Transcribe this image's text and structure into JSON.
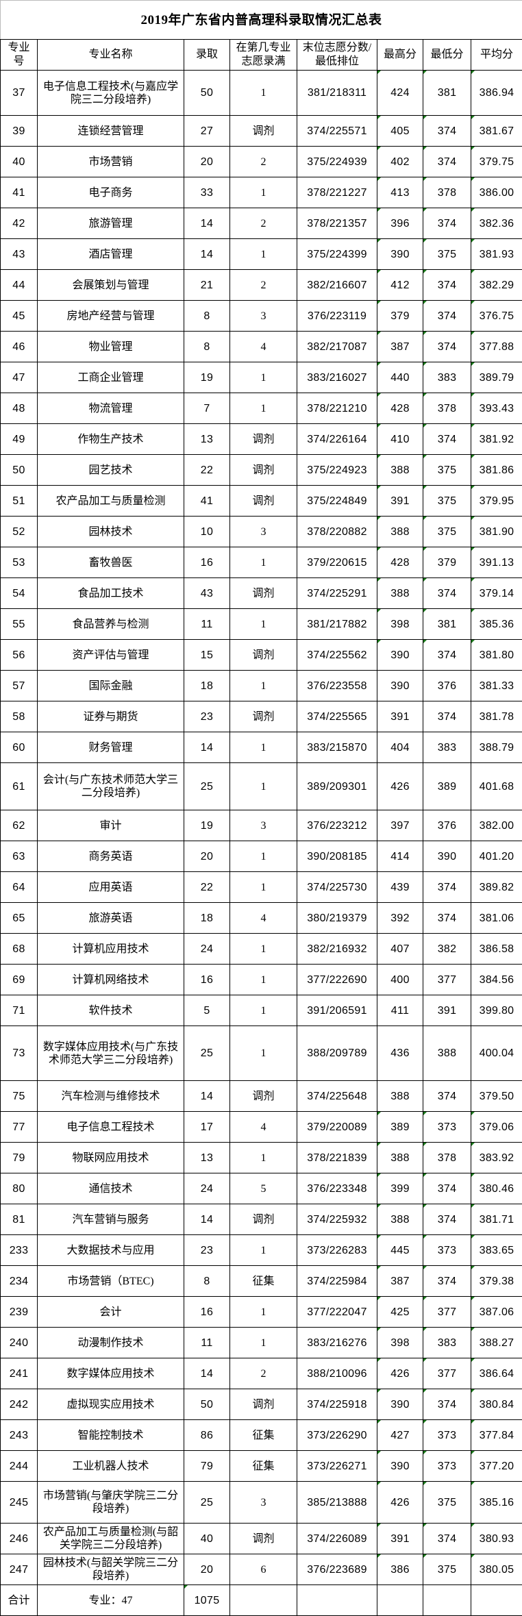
{
  "title": "2019年广东省内普高理科录取情况汇总表",
  "headers": [
    "专业号",
    "专业名称",
    "录取",
    "在第几专业志愿录满",
    "末位志愿分数/最低排位",
    "最高分",
    "最低分",
    "平均分"
  ],
  "rows": [
    {
      "code": "37",
      "name": "电子信息工程技术(与嘉应学院三二分段培养)",
      "admitted": "50",
      "round": "1",
      "last": "381/218311",
      "max": "424",
      "min": "381",
      "avg": "386.94"
    },
    {
      "code": "39",
      "name": "连锁经营管理",
      "admitted": "27",
      "round": "调剂",
      "last": "374/225571",
      "max": "405",
      "min": "374",
      "avg": "381.67"
    },
    {
      "code": "40",
      "name": "市场营销",
      "admitted": "20",
      "round": "2",
      "last": "375/224939",
      "max": "402",
      "min": "374",
      "avg": "379.75"
    },
    {
      "code": "41",
      "name": "电子商务",
      "admitted": "33",
      "round": "1",
      "last": "378/221227",
      "max": "413",
      "min": "378",
      "avg": "386.00"
    },
    {
      "code": "42",
      "name": "旅游管理",
      "admitted": "14",
      "round": "2",
      "last": "378/221357",
      "max": "396",
      "min": "374",
      "avg": "382.36"
    },
    {
      "code": "43",
      "name": "酒店管理",
      "admitted": "14",
      "round": "1",
      "last": "375/224399",
      "max": "390",
      "min": "375",
      "avg": "381.93"
    },
    {
      "code": "44",
      "name": "会展策划与管理",
      "admitted": "21",
      "round": "2",
      "last": "382/216607",
      "max": "412",
      "min": "374",
      "avg": "382.29"
    },
    {
      "code": "45",
      "name": "房地产经营与管理",
      "admitted": "8",
      "round": "3",
      "last": "376/223119",
      "max": "379",
      "min": "374",
      "avg": "376.75"
    },
    {
      "code": "46",
      "name": "物业管理",
      "admitted": "8",
      "round": "4",
      "last": "382/217087",
      "max": "387",
      "min": "374",
      "avg": "377.88"
    },
    {
      "code": "47",
      "name": "工商企业管理",
      "admitted": "19",
      "round": "1",
      "last": "383/216027",
      "max": "440",
      "min": "383",
      "avg": "389.79"
    },
    {
      "code": "48",
      "name": "物流管理",
      "admitted": "7",
      "round": "1",
      "last": "378/221210",
      "max": "428",
      "min": "378",
      "avg": "393.43"
    },
    {
      "code": "49",
      "name": "作物生产技术",
      "admitted": "13",
      "round": "调剂",
      "last": "374/226164",
      "max": "410",
      "min": "374",
      "avg": "381.92"
    },
    {
      "code": "50",
      "name": "园艺技术",
      "admitted": "22",
      "round": "调剂",
      "last": "375/224923",
      "max": "388",
      "min": "375",
      "avg": "381.86"
    },
    {
      "code": "51",
      "name": "农产品加工与质量检测",
      "admitted": "41",
      "round": "调剂",
      "last": "375/224849",
      "max": "391",
      "min": "375",
      "avg": "379.95"
    },
    {
      "code": "52",
      "name": "园林技术",
      "admitted": "10",
      "round": "3",
      "last": "378/220882",
      "max": "388",
      "min": "375",
      "avg": "381.90"
    },
    {
      "code": "53",
      "name": "畜牧兽医",
      "admitted": "16",
      "round": "1",
      "last": "379/220615",
      "max": "428",
      "min": "379",
      "avg": "391.13"
    },
    {
      "code": "54",
      "name": "食品加工技术",
      "admitted": "43",
      "round": "调剂",
      "last": "374/225291",
      "max": "388",
      "min": "374",
      "avg": "379.14"
    },
    {
      "code": "55",
      "name": "食品营养与检测",
      "admitted": "11",
      "round": "1",
      "last": "381/217882",
      "max": "398",
      "min": "381",
      "avg": "385.36"
    },
    {
      "code": "56",
      "name": "资产评估与管理",
      "admitted": "15",
      "round": "调剂",
      "last": "374/225562",
      "max": "390",
      "min": "374",
      "avg": "381.80"
    },
    {
      "code": "57",
      "name": "国际金融",
      "admitted": "18",
      "round": "1",
      "last": "376/223558",
      "max": "390",
      "min": "376",
      "avg": "381.33"
    },
    {
      "code": "58",
      "name": "证券与期货",
      "admitted": "23",
      "round": "调剂",
      "last": "374/225565",
      "max": "391",
      "min": "374",
      "avg": "381.78"
    },
    {
      "code": "60",
      "name": "财务管理",
      "admitted": "14",
      "round": "1",
      "last": "383/215870",
      "max": "404",
      "min": "383",
      "avg": "388.79"
    },
    {
      "code": "61",
      "name": "会计(与广东技术师范大学三二分段培养)",
      "admitted": "25",
      "round": "1",
      "last": "389/209301",
      "max": "426",
      "min": "389",
      "avg": "401.68"
    },
    {
      "code": "62",
      "name": "审计",
      "admitted": "19",
      "round": "3",
      "last": "376/223212",
      "max": "397",
      "min": "376",
      "avg": "382.00"
    },
    {
      "code": "63",
      "name": "商务英语",
      "admitted": "20",
      "round": "1",
      "last": "390/208185",
      "max": "414",
      "min": "390",
      "avg": "401.20"
    },
    {
      "code": "64",
      "name": "应用英语",
      "admitted": "22",
      "round": "1",
      "last": "374/225730",
      "max": "439",
      "min": "374",
      "avg": "389.82"
    },
    {
      "code": "65",
      "name": "旅游英语",
      "admitted": "18",
      "round": "4",
      "last": "380/219379",
      "max": "392",
      "min": "374",
      "avg": "381.06"
    },
    {
      "code": "68",
      "name": "计算机应用技术",
      "admitted": "24",
      "round": "1",
      "last": "382/216932",
      "max": "407",
      "min": "382",
      "avg": "386.58"
    },
    {
      "code": "69",
      "name": "计算机网络技术",
      "admitted": "16",
      "round": "1",
      "last": "377/222690",
      "max": "400",
      "min": "377",
      "avg": "384.56"
    },
    {
      "code": "71",
      "name": "软件技术",
      "admitted": "5",
      "round": "1",
      "last": "391/206591",
      "max": "411",
      "min": "391",
      "avg": "399.80"
    },
    {
      "code": "73",
      "name": "数字媒体应用技术(与广东技术师范大学三二分段培养)",
      "admitted": "25",
      "round": "1",
      "last": "388/209789",
      "max": "436",
      "min": "388",
      "avg": "400.04"
    },
    {
      "code": "75",
      "name": "汽车检测与维修技术",
      "admitted": "14",
      "round": "调剂",
      "last": "374/225648",
      "max": "388",
      "min": "374",
      "avg": "379.50"
    },
    {
      "code": "77",
      "name": "电子信息工程技术",
      "admitted": "17",
      "round": "4",
      "last": "379/220089",
      "max": "389",
      "min": "373",
      "avg": "379.06"
    },
    {
      "code": "79",
      "name": "物联网应用技术",
      "admitted": "13",
      "round": "1",
      "last": "378/221839",
      "max": "388",
      "min": "378",
      "avg": "383.92"
    },
    {
      "code": "80",
      "name": "通信技术",
      "admitted": "24",
      "round": "5",
      "last": "376/223348",
      "max": "399",
      "min": "374",
      "avg": "380.46"
    },
    {
      "code": "81",
      "name": "汽车营销与服务",
      "admitted": "14",
      "round": "调剂",
      "last": "374/225932",
      "max": "388",
      "min": "374",
      "avg": "381.71"
    },
    {
      "code": "233",
      "name": "大数据技术与应用",
      "admitted": "23",
      "round": "1",
      "last": "373/226283",
      "max": "445",
      "min": "373",
      "avg": "383.65"
    },
    {
      "code": "234",
      "name": "市场营销（BTEC)",
      "admitted": "8",
      "round": "征集",
      "last": "374/225984",
      "max": "387",
      "min": "374",
      "avg": "379.38"
    },
    {
      "code": "239",
      "name": "会计",
      "admitted": "16",
      "round": "1",
      "last": "377/222047",
      "max": "425",
      "min": "377",
      "avg": "387.06"
    },
    {
      "code": "240",
      "name": "动漫制作技术",
      "admitted": "11",
      "round": "1",
      "last": "383/216276",
      "max": "398",
      "min": "383",
      "avg": "388.27"
    },
    {
      "code": "241",
      "name": "数字媒体应用技术",
      "admitted": "14",
      "round": "2",
      "last": "388/210096",
      "max": "426",
      "min": "377",
      "avg": "386.64"
    },
    {
      "code": "242",
      "name": "虚拟现实应用技术",
      "admitted": "50",
      "round": "调剂",
      "last": "374/225918",
      "max": "390",
      "min": "374",
      "avg": "380.84"
    },
    {
      "code": "243",
      "name": "智能控制技术",
      "admitted": "86",
      "round": "征集",
      "last": "373/226290",
      "max": "427",
      "min": "373",
      "avg": "377.84"
    },
    {
      "code": "244",
      "name": "工业机器人技术",
      "admitted": "79",
      "round": "征集",
      "last": "373/226271",
      "max": "390",
      "min": "373",
      "avg": "377.20"
    },
    {
      "code": "245",
      "name": "市场营销(与肇庆学院三二分段培养)",
      "admitted": "25",
      "round": "3",
      "last": "385/213888",
      "max": "426",
      "min": "375",
      "avg": "385.16"
    },
    {
      "code": "246",
      "name": "农产品加工与质量检测(与韶关学院三二分段培养)",
      "admitted": "40",
      "round": "调剂",
      "last": "374/226089",
      "max": "391",
      "min": "374",
      "avg": "380.93"
    },
    {
      "code": "247",
      "name": "园林技术(与韶关学院三二分段培养)",
      "admitted": "20",
      "round": "6",
      "last": "376/223689",
      "max": "386",
      "min": "375",
      "avg": "380.05"
    }
  ],
  "total": {
    "label": "合计",
    "majors": "专业：47",
    "admitted": "1075"
  },
  "colors": {
    "border": "#000000",
    "comment_marker": "#1a7a1a"
  }
}
